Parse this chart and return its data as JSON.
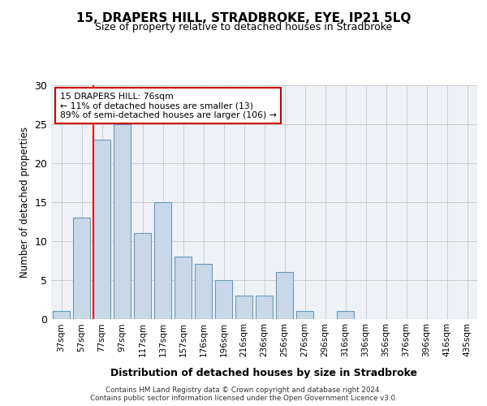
{
  "title1": "15, DRAPERS HILL, STRADBROKE, EYE, IP21 5LQ",
  "title2": "Size of property relative to detached houses in Stradbroke",
  "xlabel": "Distribution of detached houses by size in Stradbroke",
  "ylabel": "Number of detached properties",
  "categories": [
    "37sqm",
    "57sqm",
    "77sqm",
    "97sqm",
    "117sqm",
    "137sqm",
    "157sqm",
    "176sqm",
    "196sqm",
    "216sqm",
    "236sqm",
    "256sqm",
    "276sqm",
    "296sqm",
    "316sqm",
    "336sqm",
    "356sqm",
    "376sqm",
    "396sqm",
    "416sqm",
    "435sqm"
  ],
  "values": [
    1,
    13,
    23,
    25,
    11,
    15,
    8,
    7,
    5,
    3,
    3,
    6,
    1,
    0,
    1,
    0,
    0,
    0,
    0,
    0,
    0
  ],
  "bar_color": "#c8d8e8",
  "bar_edge_color": "#6699bb",
  "red_line_x": 1.575,
  "annotation_line1": "15 DRAPERS HILL: 76sqm",
  "annotation_line2": "← 11% of detached houses are smaller (13)",
  "annotation_line3": "89% of semi-detached houses are larger (106) →",
  "grid_color": "#cccccc",
  "bg_color": "#eef2f7",
  "ylim": [
    0,
    30
  ],
  "yticks": [
    0,
    5,
    10,
    15,
    20,
    25,
    30
  ],
  "footnote": "Contains HM Land Registry data © Crown copyright and database right 2024.\nContains public sector information licensed under the Open Government Licence v3.0."
}
